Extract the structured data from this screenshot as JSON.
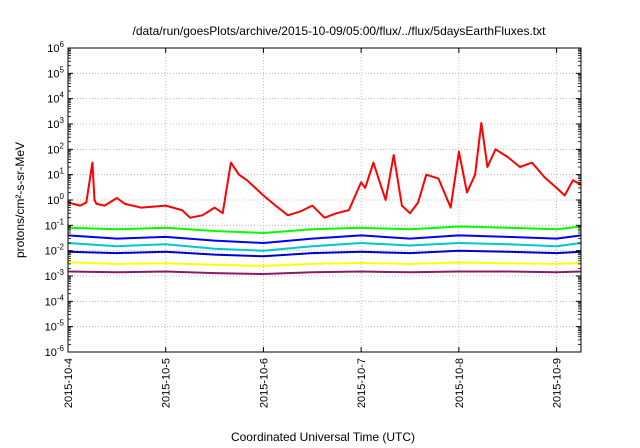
{
  "chart_data": {
    "type": "line",
    "title": "/data/run/goesPlots/archive/2015-10-09/05:00/flux/../flux/5daysEarthFluxes.txt",
    "xlabel": "Coordinated Universal Time (UTC)",
    "ylabel": "protons/cm²-s-sr-MeV",
    "y_scale": "log",
    "ylim_exponents": [
      -6,
      6
    ],
    "xlim": [
      "2015-10-04",
      "2015-10-09 06:00"
    ],
    "x_ticks": [
      "2015-10-4",
      "2015-10-5",
      "2015-10-6",
      "2015-10-7",
      "2015-10-8",
      "2015-10-9"
    ],
    "y_ticks": [
      "10^-6",
      "10^-5",
      "10^-4",
      "10^-3",
      "10^-2",
      "10^-1",
      "10^0",
      "10^1",
      "10^2",
      "10^3",
      "10^4",
      "10^5",
      "10^6"
    ],
    "grid": true,
    "legend": "none",
    "series": [
      {
        "color": "#ff0000",
        "x": [
          "2015-10-04 00:00",
          "2015-10-04 03:00",
          "2015-10-04 04:30",
          "2015-10-04 06:00",
          "2015-10-04 06:30",
          "2015-10-04 07:00",
          "2015-10-04 09:00",
          "2015-10-04 12:00",
          "2015-10-04 14:00",
          "2015-10-04 18:00",
          "2015-10-05 00:00",
          "2015-10-05 04:00",
          "2015-10-05 06:00",
          "2015-10-05 09:00",
          "2015-10-05 12:00",
          "2015-10-05 14:00",
          "2015-10-05 16:00",
          "2015-10-05 18:00",
          "2015-10-05 20:00",
          "2015-10-05 22:00",
          "2015-10-06 00:00",
          "2015-10-06 03:00",
          "2015-10-06 06:00",
          "2015-10-06 09:00",
          "2015-10-06 12:00",
          "2015-10-06 15:00",
          "2015-10-06 18:00",
          "2015-10-06 21:00",
          "2015-10-07 00:00",
          "2015-10-07 01:00",
          "2015-10-07 03:00",
          "2015-10-07 06:00",
          "2015-10-07 08:00",
          "2015-10-07 10:00",
          "2015-10-07 12:00",
          "2015-10-07 14:00",
          "2015-10-07 16:00",
          "2015-10-07 19:00",
          "2015-10-07 22:00",
          "2015-10-08 00:00",
          "2015-10-08 02:00",
          "2015-10-08 04:00",
          "2015-10-08 05:30",
          "2015-10-08 06:00",
          "2015-10-08 07:00",
          "2015-10-08 09:00",
          "2015-10-08 12:00",
          "2015-10-08 15:00",
          "2015-10-08 18:00",
          "2015-10-08 21:00",
          "2015-10-09 00:00",
          "2015-10-09 02:00",
          "2015-10-09 04:00",
          "2015-10-09 06:00"
        ],
        "values": [
          0.8,
          0.6,
          0.8,
          30,
          1.0,
          0.7,
          0.6,
          1.2,
          0.7,
          0.5,
          0.6,
          0.4,
          0.2,
          0.25,
          0.5,
          0.3,
          30,
          10,
          6,
          3,
          1.5,
          0.6,
          0.25,
          0.35,
          0.6,
          0.2,
          0.3,
          0.4,
          5,
          3,
          30,
          1.0,
          60,
          0.6,
          0.3,
          0.8,
          10,
          7,
          0.5,
          80,
          2,
          10,
          1100,
          300,
          20,
          100,
          50,
          20,
          30,
          8,
          3,
          1.5,
          6,
          4
        ]
      },
      {
        "color": "#00ff00",
        "x": [
          "2015-10-04 00:00",
          "2015-10-04 12:00",
          "2015-10-05 00:00",
          "2015-10-05 12:00",
          "2015-10-06 00:00",
          "2015-10-06 12:00",
          "2015-10-07 00:00",
          "2015-10-07 12:00",
          "2015-10-08 00:00",
          "2015-10-08 12:00",
          "2015-10-09 00:00",
          "2015-10-09 06:00"
        ],
        "values": [
          0.08,
          0.07,
          0.08,
          0.06,
          0.05,
          0.07,
          0.08,
          0.07,
          0.09,
          0.08,
          0.07,
          0.09
        ]
      },
      {
        "color": "#00c8c8",
        "x": [
          "2015-10-04 00:00",
          "2015-10-04 12:00",
          "2015-10-05 00:00",
          "2015-10-05 12:00",
          "2015-10-06 00:00",
          "2015-10-06 12:00",
          "2015-10-07 00:00",
          "2015-10-07 12:00",
          "2015-10-08 00:00",
          "2015-10-08 12:00",
          "2015-10-09 00:00",
          "2015-10-09 06:00"
        ],
        "values": [
          0.02,
          0.015,
          0.018,
          0.012,
          0.01,
          0.015,
          0.02,
          0.016,
          0.02,
          0.018,
          0.015,
          0.02
        ]
      },
      {
        "color": "#0000ff",
        "x": [
          "2015-10-04 00:00",
          "2015-10-04 12:00",
          "2015-10-05 00:00",
          "2015-10-05 12:00",
          "2015-10-06 00:00",
          "2015-10-06 12:00",
          "2015-10-07 00:00",
          "2015-10-07 12:00",
          "2015-10-08 00:00",
          "2015-10-08 12:00",
          "2015-10-09 00:00",
          "2015-10-09 06:00"
        ],
        "values": [
          0.04,
          0.03,
          0.035,
          0.025,
          0.02,
          0.03,
          0.04,
          0.03,
          0.04,
          0.035,
          0.03,
          0.04
        ]
      },
      {
        "color": "#0000cc",
        "x": [
          "2015-10-04 00:00",
          "2015-10-04 12:00",
          "2015-10-05 00:00",
          "2015-10-05 12:00",
          "2015-10-06 00:00",
          "2015-10-06 12:00",
          "2015-10-07 00:00",
          "2015-10-07 12:00",
          "2015-10-08 00:00",
          "2015-10-08 12:00",
          "2015-10-09 00:00",
          "2015-10-09 06:00"
        ],
        "values": [
          0.009,
          0.008,
          0.009,
          0.007,
          0.006,
          0.008,
          0.009,
          0.008,
          0.01,
          0.009,
          0.008,
          0.009
        ]
      },
      {
        "color": "#ffff00",
        "x": [
          "2015-10-04 00:00",
          "2015-10-04 12:00",
          "2015-10-05 00:00",
          "2015-10-05 12:00",
          "2015-10-06 00:00",
          "2015-10-06 12:00",
          "2015-10-07 00:00",
          "2015-10-07 12:00",
          "2015-10-08 00:00",
          "2015-10-08 12:00",
          "2015-10-09 00:00",
          "2015-10-09 06:00"
        ],
        "values": [
          0.0035,
          0.003,
          0.0032,
          0.0028,
          0.0025,
          0.003,
          0.0033,
          0.003,
          0.0034,
          0.0032,
          0.003,
          0.0033
        ]
      },
      {
        "color": "#8b1a6b",
        "x": [
          "2015-10-04 00:00",
          "2015-10-04 12:00",
          "2015-10-05 00:00",
          "2015-10-05 12:00",
          "2015-10-06 00:00",
          "2015-10-06 12:00",
          "2015-10-07 00:00",
          "2015-10-07 12:00",
          "2015-10-08 00:00",
          "2015-10-08 12:00",
          "2015-10-09 00:00",
          "2015-10-09 06:00"
        ],
        "values": [
          0.0015,
          0.0014,
          0.0015,
          0.0013,
          0.0012,
          0.0014,
          0.0015,
          0.0014,
          0.0015,
          0.0015,
          0.0014,
          0.0015
        ]
      }
    ]
  }
}
